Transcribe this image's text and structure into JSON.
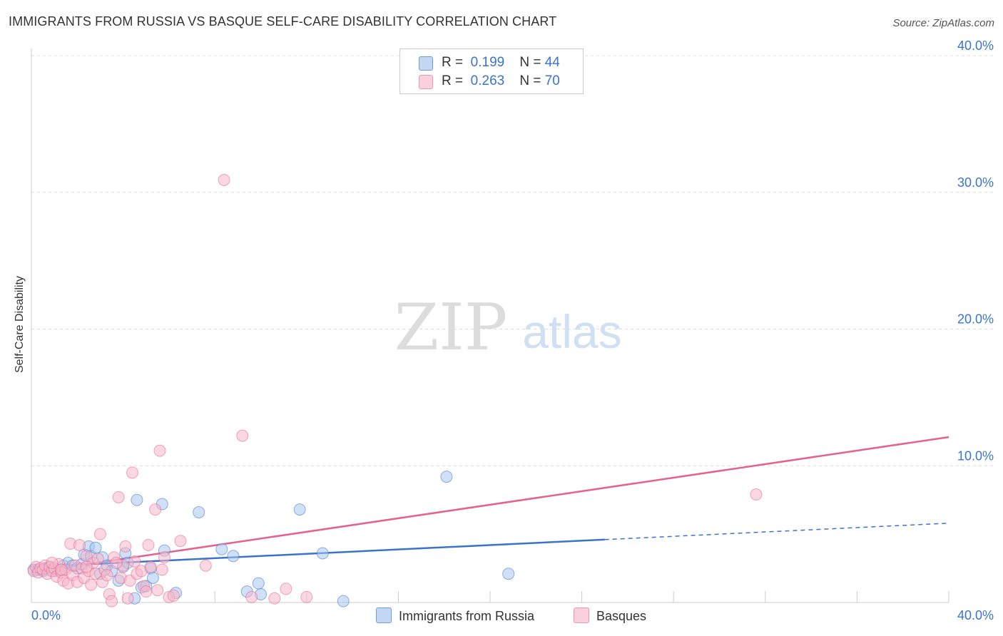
{
  "title": "IMMIGRANTS FROM RUSSIA VS BASQUE SELF-CARE DISABILITY CORRELATION CHART",
  "source": "Source: ZipAtlas.com",
  "watermark": {
    "zip": "ZIP",
    "atlas": "atlas"
  },
  "legend": {
    "r_label": "R =",
    "n_label": "N =",
    "series": [
      {
        "r": "0.199",
        "n": "44"
      },
      {
        "r": "0.263",
        "n": "70"
      }
    ]
  },
  "chart_data": {
    "type": "scatter",
    "title": "IMMIGRANTS FROM RUSSIA VS BASQUE SELF-CARE DISABILITY CORRELATION CHART",
    "xlabel": "",
    "ylabel": "Self-Care Disability",
    "xlim": [
      0,
      40
    ],
    "ylim": [
      0,
      40
    ],
    "x_tick_labels": [
      "0.0%",
      "40.0%"
    ],
    "y_ticks": [
      10,
      20,
      30,
      40
    ],
    "y_tick_labels": [
      "10.0%",
      "20.0%",
      "30.0%",
      "40.0%"
    ],
    "grid": true,
    "legend_position": "top-center",
    "series": [
      {
        "name": "Immigrants from Russia",
        "color": "#3a74c9",
        "fill": "#a9c6ef",
        "r": 0.199,
        "n": 44,
        "trend": {
          "x0": 0,
          "y0": 2.6,
          "x1": 25,
          "y1": 4.6,
          "dashed_to_x": 40,
          "dashed_to_y": 5.8
        },
        "points": [
          [
            0.1,
            2.4
          ],
          [
            0.3,
            2.4
          ],
          [
            0.5,
            2.3
          ],
          [
            0.6,
            2.5
          ],
          [
            0.8,
            2.6
          ],
          [
            1.0,
            2.3
          ],
          [
            1.2,
            2.4
          ],
          [
            1.4,
            2.7
          ],
          [
            1.6,
            2.9
          ],
          [
            1.8,
            2.7
          ],
          [
            2.0,
            2.5
          ],
          [
            2.2,
            2.8
          ],
          [
            2.3,
            3.5
          ],
          [
            2.5,
            4.1
          ],
          [
            2.6,
            3.4
          ],
          [
            2.8,
            4.0
          ],
          [
            3.0,
            2.1
          ],
          [
            3.1,
            3.3
          ],
          [
            3.3,
            2.7
          ],
          [
            3.5,
            2.3
          ],
          [
            3.8,
            1.6
          ],
          [
            4.0,
            2.6
          ],
          [
            4.1,
            3.6
          ],
          [
            4.2,
            2.9
          ],
          [
            4.5,
            0.3
          ],
          [
            4.6,
            7.5
          ],
          [
            4.8,
            1.1
          ],
          [
            5.0,
            1.2
          ],
          [
            5.2,
            2.5
          ],
          [
            5.3,
            1.8
          ],
          [
            5.7,
            7.2
          ],
          [
            5.8,
            3.8
          ],
          [
            6.3,
            0.7
          ],
          [
            7.3,
            6.6
          ],
          [
            8.3,
            3.9
          ],
          [
            8.8,
            3.4
          ],
          [
            9.4,
            0.8
          ],
          [
            9.9,
            1.4
          ],
          [
            10.0,
            0.6
          ],
          [
            11.7,
            6.8
          ],
          [
            12.7,
            3.6
          ],
          [
            13.6,
            0.1
          ],
          [
            18.1,
            9.2
          ],
          [
            20.8,
            2.1
          ]
        ]
      },
      {
        "name": "Basques",
        "color": "#e3628f",
        "fill": "#f6b7c9",
        "r": 0.263,
        "n": 70,
        "trend": {
          "x0": 0,
          "y0": 2.2,
          "x1": 40,
          "y1": 12.1
        },
        "points": [
          [
            0.1,
            2.3
          ],
          [
            0.2,
            2.6
          ],
          [
            0.3,
            2.2
          ],
          [
            0.4,
            2.5
          ],
          [
            0.5,
            2.4
          ],
          [
            0.6,
            2.7
          ],
          [
            0.7,
            2.1
          ],
          [
            0.8,
            2.6
          ],
          [
            0.9,
            2.3
          ],
          [
            1.0,
            2.5
          ],
          [
            1.1,
            1.9
          ],
          [
            1.2,
            2.8
          ],
          [
            1.3,
            2.2
          ],
          [
            1.4,
            1.6
          ],
          [
            1.5,
            2.4
          ],
          [
            1.6,
            1.4
          ],
          [
            1.7,
            4.3
          ],
          [
            1.8,
            2.0
          ],
          [
            1.9,
            2.7
          ],
          [
            2.0,
            1.5
          ],
          [
            2.1,
            4.2
          ],
          [
            2.2,
            2.5
          ],
          [
            2.3,
            1.8
          ],
          [
            2.4,
            3.4
          ],
          [
            2.5,
            2.3
          ],
          [
            2.6,
            1.3
          ],
          [
            2.7,
            2.9
          ],
          [
            2.8,
            2.1
          ],
          [
            2.9,
            3.2
          ],
          [
            3.0,
            5.0
          ],
          [
            3.1,
            1.5
          ],
          [
            3.2,
            2.4
          ],
          [
            3.3,
            2.0
          ],
          [
            3.4,
            0.6
          ],
          [
            3.5,
            0.1
          ],
          [
            3.6,
            3.3
          ],
          [
            3.8,
            7.7
          ],
          [
            3.9,
            1.8
          ],
          [
            4.0,
            2.7
          ],
          [
            4.1,
            4.1
          ],
          [
            4.2,
            0.3
          ],
          [
            4.3,
            1.6
          ],
          [
            4.4,
            9.5
          ],
          [
            4.5,
            3.0
          ],
          [
            4.6,
            2.1
          ],
          [
            4.8,
            2.3
          ],
          [
            4.9,
            1.2
          ],
          [
            5.0,
            0.8
          ],
          [
            5.1,
            4.2
          ],
          [
            5.2,
            2.6
          ],
          [
            5.4,
            6.8
          ],
          [
            5.5,
            0.9
          ],
          [
            5.6,
            11.1
          ],
          [
            5.7,
            2.4
          ],
          [
            5.8,
            3.3
          ],
          [
            6.0,
            0.4
          ],
          [
            6.2,
            0.5
          ],
          [
            6.5,
            4.5
          ],
          [
            7.6,
            2.7
          ],
          [
            8.4,
            30.9
          ],
          [
            9.2,
            12.2
          ],
          [
            9.6,
            0.4
          ],
          [
            10.6,
            0.3
          ],
          [
            11.1,
            1.0
          ],
          [
            12.0,
            0.4
          ],
          [
            31.6,
            7.9
          ],
          [
            2.4,
            2.6
          ],
          [
            1.3,
            2.4
          ],
          [
            3.7,
            2.9
          ],
          [
            0.9,
            2.9
          ]
        ]
      }
    ]
  },
  "bottom_legend": [
    "Immigrants from Russia",
    "Basques"
  ]
}
